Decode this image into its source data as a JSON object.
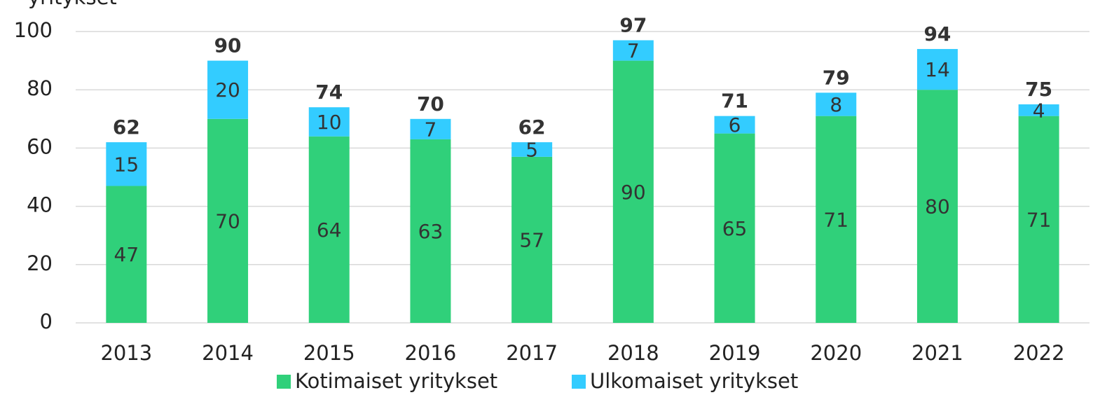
{
  "chart_data": {
    "type": "stacked_bar",
    "ylabel": "yritykset",
    "categories": [
      "2013",
      "2014",
      "2015",
      "2016",
      "2017",
      "2018",
      "2019",
      "2020",
      "2021",
      "2022"
    ],
    "series": [
      {
        "name": "Kotimaiset yritykset",
        "color": "#30d07a",
        "values": [
          47,
          70,
          64,
          63,
          57,
          90,
          65,
          71,
          80,
          71
        ]
      },
      {
        "name": "Ulkomaiset yritykset",
        "color": "#33ccff",
        "values": [
          15,
          20,
          10,
          7,
          5,
          7,
          6,
          8,
          14,
          4
        ]
      }
    ],
    "total_labels": [
      "62",
      "90",
      "74",
      "70",
      "62",
      "97",
      "71",
      "79",
      "94",
      "75"
    ],
    "ylim": [
      0,
      100
    ],
    "yticks": [
      0,
      20,
      40,
      60,
      80,
      100
    ],
    "grid": true
  }
}
